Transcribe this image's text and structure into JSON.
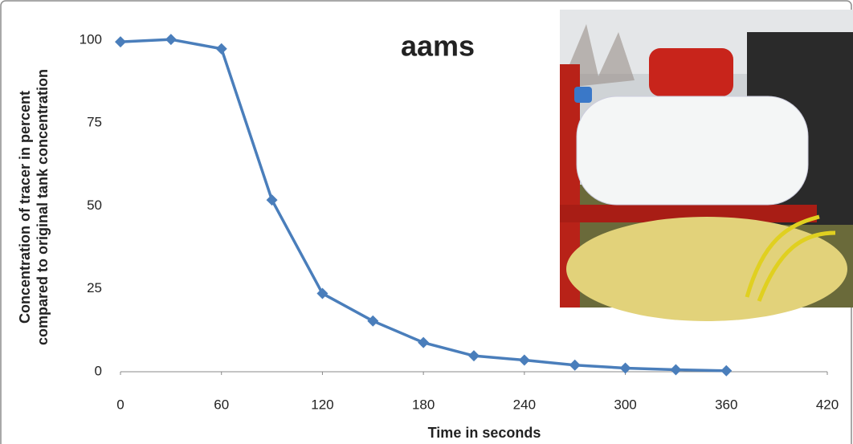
{
  "chart_data": {
    "type": "line",
    "title": "aams",
    "x_label": "Time in seconds",
    "y_label": [
      "Concentration of tracer in percent",
      "compared to original tank concentration"
    ],
    "x": [
      0,
      30,
      60,
      90,
      120,
      150,
      180,
      210,
      240,
      270,
      300,
      330,
      360
    ],
    "series": [
      {
        "color": "#4a7ebb",
        "values": [
          99.5,
          100.2,
          97.4,
          51.8,
          23.6,
          15.3,
          8.8,
          4.8,
          3.5,
          2.0,
          1.1,
          0.6,
          0.3
        ]
      }
    ],
    "xlim": [
      0,
      420
    ],
    "xticks": [
      0,
      60,
      120,
      180,
      240,
      300,
      360,
      420
    ],
    "ylim": [
      0,
      100
    ],
    "yticks": [
      0,
      25,
      50,
      75,
      100
    ],
    "grid": false,
    "marker": "diamond"
  }
}
